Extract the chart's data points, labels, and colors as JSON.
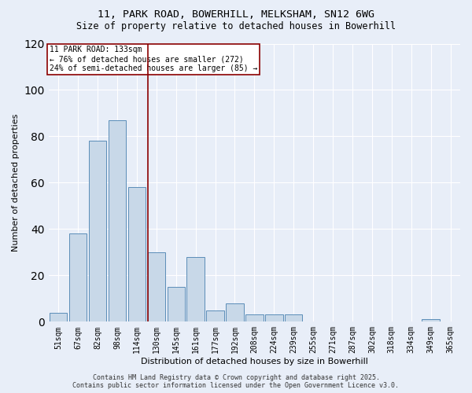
{
  "title_line1": "11, PARK ROAD, BOWERHILL, MELKSHAM, SN12 6WG",
  "title_line2": "Size of property relative to detached houses in Bowerhill",
  "xlabel": "Distribution of detached houses by size in Bowerhill",
  "ylabel": "Number of detached properties",
  "categories": [
    "51sqm",
    "67sqm",
    "82sqm",
    "98sqm",
    "114sqm",
    "130sqm",
    "145sqm",
    "161sqm",
    "177sqm",
    "192sqm",
    "208sqm",
    "224sqm",
    "239sqm",
    "255sqm",
    "271sqm",
    "287sqm",
    "302sqm",
    "318sqm",
    "334sqm",
    "349sqm",
    "365sqm"
  ],
  "values": [
    4,
    38,
    78,
    87,
    58,
    30,
    15,
    28,
    5,
    8,
    3,
    3,
    3,
    0,
    0,
    0,
    0,
    0,
    0,
    1,
    0
  ],
  "bar_color": "#c8d8e8",
  "bar_edge_color": "#5b8db8",
  "vline_x_index": 5,
  "vline_color": "#8b0000",
  "ylim": [
    0,
    120
  ],
  "annotation_text": "11 PARK ROAD: 133sqm\n← 76% of detached houses are smaller (272)\n24% of semi-detached houses are larger (85) →",
  "annotation_box_color": "white",
  "annotation_box_edge_color": "#8b0000",
  "background_color": "#e8eef8",
  "grid_color": "white",
  "footer_line1": "Contains HM Land Registry data © Crown copyright and database right 2025.",
  "footer_line2": "Contains public sector information licensed under the Open Government Licence v3.0.",
  "title_fontsize": 9.5,
  "subtitle_fontsize": 8.5,
  "label_fontsize": 8,
  "tick_fontsize": 7,
  "annotation_fontsize": 7,
  "footer_fontsize": 6
}
